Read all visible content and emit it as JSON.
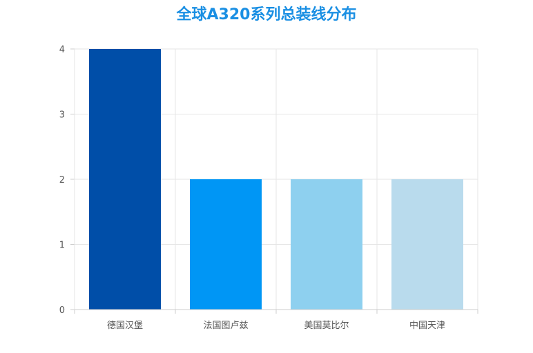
{
  "chart_data": {
    "type": "bar",
    "title": "全球A320系列总装线分布",
    "categories": [
      "德国汉堡",
      "法国图卢兹",
      "美国莫比尔",
      "中国天津"
    ],
    "values": [
      4,
      2,
      2,
      2
    ],
    "bar_colors": [
      "#004ea8",
      "#0096f5",
      "#8ed0ef",
      "#b9dbed"
    ],
    "xlabel": "",
    "ylabel": "",
    "ylim": [
      0,
      4
    ],
    "yticks": [
      0,
      1,
      2,
      3,
      4
    ],
    "grid": true,
    "legend": "none"
  },
  "colors": {
    "title": "#1a8fe3",
    "grid": "#e6e6e6",
    "axis": "#cccccc"
  }
}
